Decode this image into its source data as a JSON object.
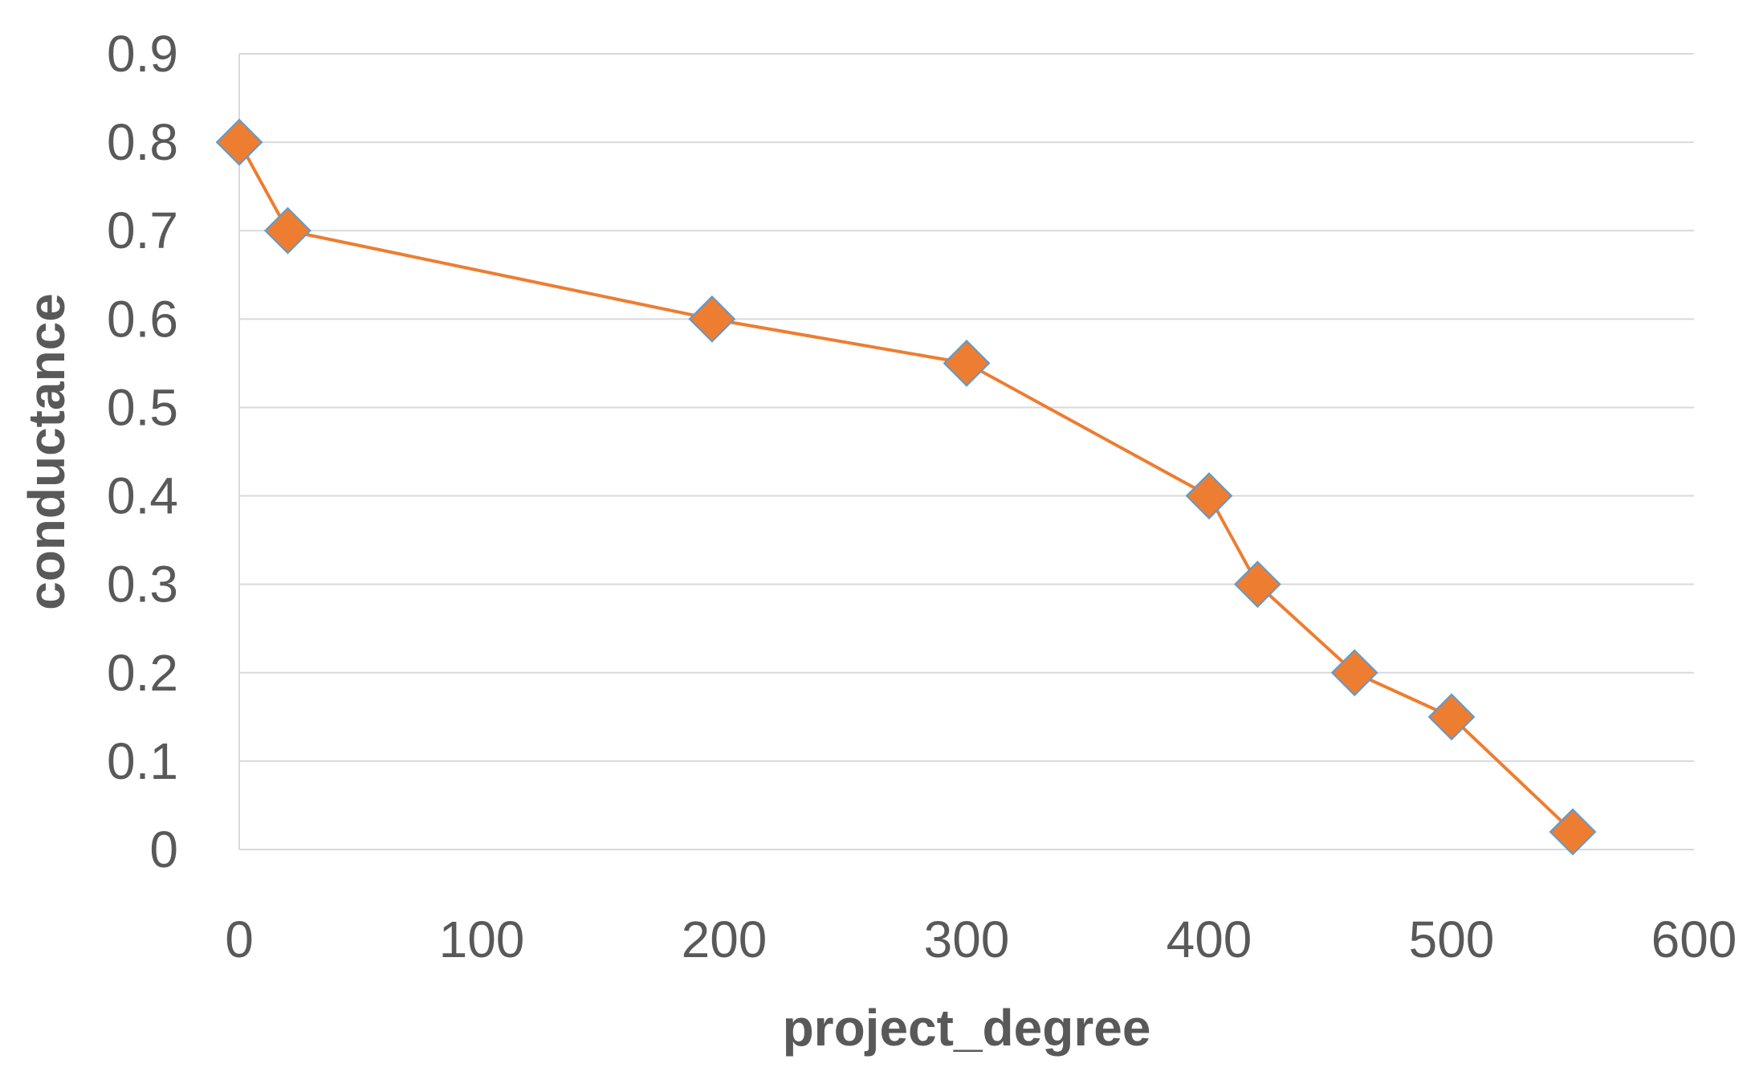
{
  "chart_data": {
    "type": "scatter",
    "title": "",
    "xlabel": "project_degree",
    "ylabel": "conductance",
    "xlim": [
      0,
      600
    ],
    "ylim": [
      0,
      0.9
    ],
    "xticks": [
      0,
      100,
      200,
      300,
      400,
      500,
      600
    ],
    "yticks": [
      0,
      0.1,
      0.2,
      0.3,
      0.4,
      0.5,
      0.6,
      0.7,
      0.8,
      0.9
    ],
    "xtick_labels": [
      "0",
      "100",
      "200",
      "300",
      "400",
      "500",
      "600"
    ],
    "ytick_labels": [
      "0",
      "0.1",
      "0.2",
      "0.3",
      "0.4",
      "0.5",
      "0.6",
      "0.7",
      "0.8",
      "0.9"
    ],
    "grid": "horizontal",
    "legend": "none",
    "series": [
      {
        "marker": "diamond",
        "line": "straight",
        "color": "#ED7D31",
        "marker_border_color": "#5B9BD5",
        "x": [
          0,
          20,
          195,
          300,
          400,
          420,
          460,
          500,
          550
        ],
        "y": [
          0.8,
          0.7,
          0.6,
          0.55,
          0.4,
          0.3,
          0.2,
          0.15,
          0.02
        ]
      }
    ]
  }
}
